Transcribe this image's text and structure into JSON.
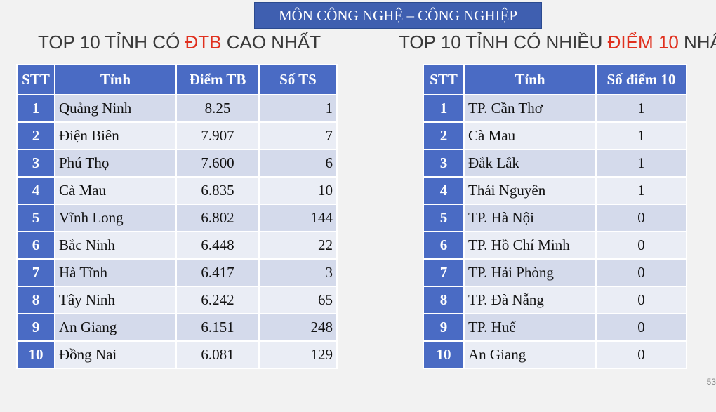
{
  "banner": "MÔN CÔNG NGHỆ – CÔNG NGHIỆP",
  "heading_left": {
    "pre": "TOP 10 TỈNH CÓ ",
    "highlight": "ĐTB",
    "post": " CAO NHẤT"
  },
  "heading_right": {
    "pre": "TOP 10 TỈNH CÓ NHIỀU ",
    "highlight": "ĐIỂM 10",
    "post": " NHẤT"
  },
  "highlight_color": "#e0301e",
  "header_color": "#4a6bc4",
  "table_left": {
    "headers": [
      "STT",
      "Tỉnh",
      "Điểm TB",
      "Số TS"
    ],
    "rows": [
      [
        "1",
        "Quảng Ninh",
        "8.25",
        "1"
      ],
      [
        "2",
        "Điện Biên",
        "7.907",
        "7"
      ],
      [
        "3",
        "Phú Thọ",
        "7.600",
        "6"
      ],
      [
        "4",
        "Cà Mau",
        "6.835",
        "10"
      ],
      [
        "5",
        "Vĩnh Long",
        "6.802",
        "144"
      ],
      [
        "6",
        "Bắc Ninh",
        "6.448",
        "22"
      ],
      [
        "7",
        "Hà Tĩnh",
        "6.417",
        "3"
      ],
      [
        "8",
        "Tây Ninh",
        "6.242",
        "65"
      ],
      [
        "9",
        "An Giang",
        "6.151",
        "248"
      ],
      [
        "10",
        "Đồng Nai",
        "6.081",
        "129"
      ]
    ]
  },
  "table_right": {
    "headers": [
      "STT",
      "Tỉnh",
      "Số điểm 10"
    ],
    "rows": [
      [
        "1",
        "TP. Cần Thơ",
        "1"
      ],
      [
        "2",
        "Cà Mau",
        "1"
      ],
      [
        "3",
        "Đắk Lắk",
        "1"
      ],
      [
        "4",
        "Thái Nguyên",
        "1"
      ],
      [
        "5",
        "TP. Hà Nội",
        "0"
      ],
      [
        "6",
        "TP. Hồ Chí Minh",
        "0"
      ],
      [
        "7",
        "TP. Hải Phòng",
        "0"
      ],
      [
        "8",
        "TP. Đà Nẵng",
        "0"
      ],
      [
        "9",
        "TP. Huế",
        "0"
      ],
      [
        "10",
        "An Giang",
        "0"
      ]
    ]
  },
  "page_number": "53"
}
